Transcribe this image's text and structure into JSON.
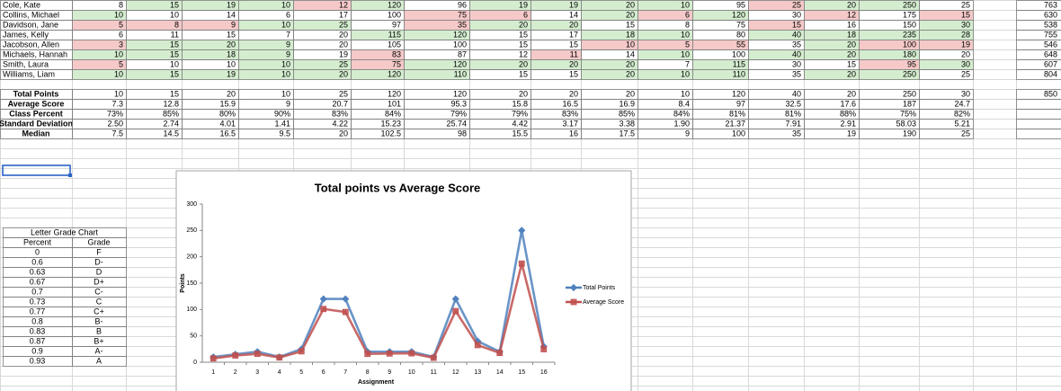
{
  "sheet": {
    "students": [
      {
        "name": "Cole, Kate",
        "scores": [
          8,
          15,
          19,
          10,
          12,
          120,
          96,
          19,
          19,
          20,
          10,
          95,
          25,
          20,
          250,
          25
        ],
        "total": 763,
        "fills": [
          null,
          "green",
          "green",
          "green",
          "red",
          "green",
          null,
          "green",
          "green",
          "green",
          "green",
          null,
          "red",
          "green",
          "green",
          null
        ]
      },
      {
        "name": "Collins, Michael",
        "scores": [
          10,
          10,
          14,
          6,
          17,
          100,
          75,
          6,
          14,
          20,
          6,
          120,
          30,
          12,
          175,
          15
        ],
        "total": 630,
        "fills": [
          "green",
          null,
          null,
          null,
          null,
          null,
          "red",
          "red",
          null,
          "green",
          "red",
          "green",
          null,
          "red",
          null,
          "red"
        ]
      },
      {
        "name": "Davidson, Jane",
        "scores": [
          5,
          8,
          9,
          10,
          25,
          97,
          35,
          20,
          20,
          15,
          8,
          75,
          15,
          16,
          150,
          30
        ],
        "total": 538,
        "fills": [
          "red",
          "red",
          "red",
          "green",
          "green",
          null,
          "red",
          "green",
          "green",
          null,
          null,
          null,
          "red",
          null,
          null,
          "green"
        ]
      },
      {
        "name": "James, Kelly",
        "scores": [
          6,
          11,
          15,
          7,
          20,
          115,
          120,
          15,
          17,
          18,
          10,
          80,
          40,
          18,
          235,
          28
        ],
        "total": 755,
        "fills": [
          null,
          null,
          null,
          null,
          null,
          "green",
          "green",
          null,
          null,
          "green",
          "green",
          null,
          "green",
          "green",
          "green",
          "green"
        ]
      },
      {
        "name": "Jacobson, Allen",
        "scores": [
          3,
          15,
          20,
          9,
          20,
          105,
          100,
          15,
          15,
          10,
          5,
          55,
          35,
          20,
          100,
          19
        ],
        "total": 546,
        "fills": [
          "red",
          "green",
          "green",
          "green",
          null,
          null,
          null,
          null,
          null,
          "red",
          "red",
          "red",
          null,
          "green",
          "red",
          "red"
        ]
      },
      {
        "name": "Michaels, Hannah",
        "scores": [
          10,
          15,
          18,
          9,
          19,
          83,
          87,
          12,
          11,
          14,
          10,
          100,
          40,
          20,
          180,
          20
        ],
        "total": 648,
        "fills": [
          "green",
          "green",
          "green",
          "green",
          null,
          "red",
          null,
          null,
          "red",
          null,
          "green",
          null,
          "green",
          "green",
          "green",
          null
        ]
      },
      {
        "name": "Smith, Laura",
        "scores": [
          5,
          10,
          10,
          10,
          25,
          75,
          120,
          20,
          20,
          20,
          7,
          115,
          30,
          15,
          95,
          30
        ],
        "total": 607,
        "fills": [
          "red",
          null,
          null,
          "green",
          "green",
          "red",
          "green",
          "green",
          "green",
          "green",
          null,
          "green",
          null,
          null,
          "red",
          "green"
        ]
      },
      {
        "name": "Williams, Liam",
        "scores": [
          10,
          15,
          19,
          10,
          20,
          120,
          110,
          15,
          15,
          20,
          10,
          110,
          35,
          20,
          250,
          25
        ],
        "total": 804,
        "fills": [
          "green",
          "green",
          "green",
          "green",
          "green",
          "green",
          "green",
          null,
          null,
          "green",
          "green",
          "green",
          null,
          "green",
          "green",
          null
        ]
      }
    ],
    "summary": [
      {
        "label": "Total Points",
        "values": [
          10,
          15,
          20,
          10,
          25,
          120,
          120,
          20,
          20,
          20,
          10,
          120,
          40,
          20,
          250,
          30
        ],
        "total": 850
      },
      {
        "label": "Average Score",
        "values": [
          7.3,
          12.8,
          15.9,
          9,
          20.7,
          101,
          95.3,
          15.8,
          16.5,
          16.9,
          8.4,
          97,
          32.5,
          17.6,
          187,
          24.7
        ]
      },
      {
        "label": "Class Percent",
        "values": [
          "73%",
          "85%",
          "80%",
          "90%",
          "83%",
          "84%",
          "79%",
          "79%",
          "83%",
          "85%",
          "84%",
          "81%",
          "81%",
          "88%",
          "75%",
          "82%"
        ]
      },
      {
        "label": "Standard Deviation",
        "values": [
          "2.50",
          "2.74",
          "4.01",
          "1.41",
          "4.22",
          "15.23",
          "25.74",
          "4.42",
          "3.17",
          "3.38",
          "1.90",
          "21.37",
          "7.91",
          "2.91",
          "58.03",
          "5.21"
        ]
      },
      {
        "label": "Median",
        "values": [
          7.5,
          14.5,
          16.5,
          9.5,
          20,
          102.5,
          98,
          15.5,
          16,
          17.5,
          9,
          100,
          35,
          19,
          190,
          25
        ]
      }
    ],
    "grade_chart": {
      "title": "Letter Grade Chart",
      "headers": [
        "Percent",
        "Grade"
      ],
      "rows": [
        [
          0,
          "F"
        ],
        [
          0.6,
          "D-"
        ],
        [
          0.63,
          "D"
        ],
        [
          0.67,
          "D+"
        ],
        [
          0.7,
          "C-"
        ],
        [
          0.73,
          "C"
        ],
        [
          0.77,
          "C+"
        ],
        [
          0.8,
          "B-"
        ],
        [
          0.83,
          "B"
        ],
        [
          0.87,
          "B+"
        ],
        [
          0.9,
          "A-"
        ],
        [
          0.93,
          "A"
        ]
      ]
    }
  },
  "chart_data": {
    "type": "line",
    "title": "Total points vs Average Score",
    "x_label": "Assignment",
    "y_label": "Points",
    "categories": [
      1,
      2,
      3,
      4,
      5,
      6,
      7,
      8,
      9,
      10,
      11,
      12,
      13,
      14,
      15,
      16
    ],
    "series": [
      {
        "name": "Total Points",
        "color": "#4f81bd",
        "marker": "diamond",
        "values": [
          10,
          15,
          20,
          10,
          25,
          120,
          120,
          20,
          20,
          20,
          10,
          120,
          40,
          20,
          250,
          30
        ]
      },
      {
        "name": "Average Score",
        "color": "#c0504d",
        "marker": "square",
        "values": [
          7.3,
          12.8,
          15.9,
          9,
          20.7,
          101,
          95.3,
          15.8,
          16.5,
          16.9,
          8.4,
          97,
          32.5,
          17.6,
          187,
          24.7
        ]
      }
    ],
    "ylim": [
      0,
      300
    ],
    "yticks": [
      0,
      50,
      100,
      150,
      200,
      250,
      300
    ],
    "grid": false,
    "legend": "right"
  }
}
